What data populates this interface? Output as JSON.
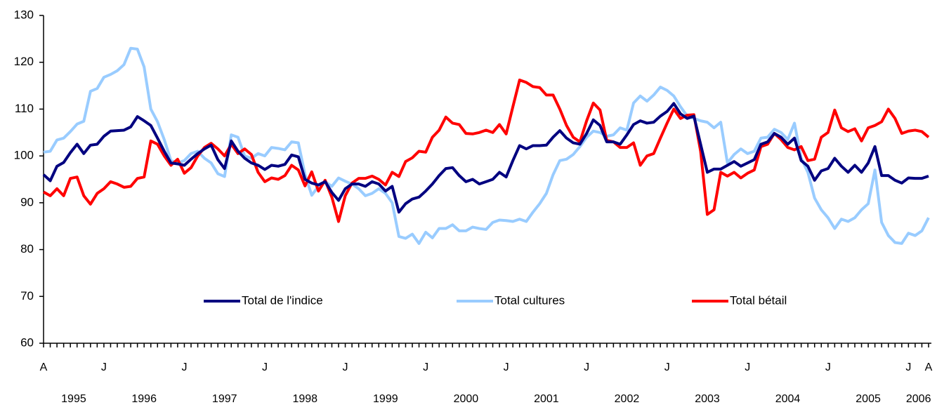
{
  "chart_data": {
    "type": "line",
    "categories": [
      "A",
      null,
      null,
      null,
      null,
      null,
      null,
      null,
      null,
      "J",
      null,
      null,
      null,
      null,
      null,
      null,
      null,
      null,
      null,
      null,
      null,
      "J",
      null,
      null,
      null,
      null,
      null,
      null,
      null,
      null,
      null,
      null,
      null,
      "J",
      null,
      null,
      null,
      null,
      null,
      null,
      null,
      null,
      null,
      null,
      null,
      "J",
      null,
      null,
      null,
      null,
      null,
      null,
      null,
      null,
      null,
      null,
      null,
      "J",
      null,
      null,
      null,
      null,
      null,
      null,
      null,
      null,
      null,
      null,
      null,
      "J",
      null,
      null,
      null,
      null,
      null,
      null,
      null,
      null,
      null,
      null,
      null,
      "J",
      null,
      null,
      null,
      null,
      null,
      null,
      null,
      null,
      null,
      null,
      null,
      "J",
      null,
      null,
      null,
      null,
      null,
      null,
      null,
      null,
      null,
      null,
      null,
      "J",
      null,
      null,
      null,
      null,
      null,
      null,
      null,
      null,
      null,
      null,
      null,
      "J",
      null,
      null,
      null,
      null,
      null,
      null,
      null,
      null,
      null,
      null,
      null,
      "J",
      null,
      null,
      "A"
    ],
    "years": [
      "1995",
      "1996",
      "1997",
      "1998",
      "1999",
      "2000",
      "2001",
      "2002",
      "2003",
      "2004",
      "2005",
      "2006"
    ],
    "series": [
      {
        "name": "Total de l'indice",
        "color": "#000080",
        "values": [
          96,
          94.7,
          97.8,
          98.6,
          100.7,
          102.5,
          100.5,
          102.3,
          102.5,
          104.2,
          105.3,
          105.4,
          105.5,
          106.2,
          108.4,
          107.5,
          106.5,
          103.8,
          101,
          98.5,
          98.3,
          98,
          99.3,
          100.5,
          101.5,
          102.3,
          99.2,
          97.3,
          103.2,
          101,
          99.5,
          98.5,
          98,
          97.1,
          98,
          97.8,
          98.2,
          100.2,
          99.8,
          95,
          94.2,
          93.8,
          94.5,
          92.2,
          90.5,
          93,
          94,
          94,
          93.5,
          94.5,
          94,
          92.5,
          93.5,
          88,
          89.8,
          90.8,
          91.2,
          92.5,
          94,
          95.8,
          97.3,
          97.5,
          95.8,
          94.5,
          95,
          94,
          94.5,
          95,
          96.5,
          95.5,
          99,
          102.2,
          101.5,
          102.2,
          102.2,
          102.3,
          104,
          105.4,
          103.8,
          102.8,
          102.5,
          104.8,
          107.7,
          106.5,
          103,
          103,
          102.5,
          104.5,
          106.7,
          107.5,
          107,
          107.2,
          108.5,
          109.5,
          111.2,
          109,
          108,
          108.5,
          102.5,
          96.5,
          97.2,
          97.2,
          98,
          98.8,
          97.8,
          98.5,
          99.2,
          102.5,
          103,
          104.8,
          104,
          102.5,
          103.8,
          99,
          97.8,
          94.8,
          96.8,
          97.3,
          99.5,
          97.8,
          96.5,
          98,
          96.5,
          98.5,
          102,
          95.8,
          95.8,
          94.8,
          94.2,
          95.3,
          95.2,
          95.2,
          95.7
        ]
      },
      {
        "name": "Total cultures",
        "color": "#99ccff",
        "values": [
          100.8,
          101,
          103.4,
          103.8,
          105.2,
          106.8,
          107.4,
          113.8,
          114.4,
          116.8,
          117.4,
          118.2,
          119.5,
          123,
          122.8,
          119,
          110,
          107.3,
          103.5,
          99,
          98.5,
          99,
          100.5,
          101,
          99.5,
          98.5,
          96.2,
          95.6,
          104.5,
          104,
          100,
          99.5,
          100.5,
          100,
          101.8,
          101.6,
          101.3,
          103,
          102.8,
          96,
          91.6,
          93.5,
          94.5,
          93.5,
          95.3,
          94.6,
          94,
          93,
          91.5,
          92,
          93,
          92,
          90,
          82.8,
          82.4,
          83.3,
          81.3,
          83.7,
          82.5,
          84.5,
          84.5,
          85.3,
          84,
          84,
          84.8,
          84.5,
          84.3,
          85.8,
          86.3,
          86.2,
          86,
          86.5,
          86,
          88,
          89.8,
          92,
          96,
          99,
          99.3,
          100.3,
          102,
          104,
          105.3,
          105,
          104.2,
          104.5,
          106,
          105.5,
          111.3,
          112.8,
          111.7,
          113,
          114.7,
          114,
          112.8,
          110.5,
          108.5,
          108,
          107.5,
          107.2,
          106,
          107.2,
          98.5,
          100.3,
          101.5,
          100.5,
          101,
          103.8,
          104,
          105.7,
          105,
          103.5,
          107,
          99.5,
          96.5,
          91,
          88.5,
          86.8,
          84.5,
          86.5,
          86,
          86.8,
          88.5,
          89.8,
          97,
          85.8,
          83,
          81.5,
          81.3,
          83.5,
          83,
          84,
          86.8
        ]
      },
      {
        "name": "Total bétail",
        "color": "#ff0000",
        "values": [
          92.3,
          91.5,
          93,
          91.5,
          95.2,
          95.5,
          91.5,
          89.7,
          92,
          93,
          94.5,
          94,
          93.3,
          93.5,
          95.2,
          95.5,
          103.2,
          102.5,
          100,
          98,
          99.3,
          96.3,
          97.5,
          100,
          101.8,
          102.7,
          101.5,
          100,
          102.5,
          100.5,
          101.5,
          100.3,
          96.5,
          94.5,
          95.3,
          95,
          95.8,
          98,
          97,
          93.6,
          96.6,
          92.5,
          94.8,
          91.2,
          86,
          91.5,
          94.2,
          95.2,
          95.2,
          95.7,
          95,
          93.8,
          96.5,
          95.6,
          98.8,
          99.6,
          101,
          100.8,
          104,
          105.5,
          108.3,
          107,
          106.7,
          104.8,
          104.7,
          105,
          105.5,
          105,
          106.7,
          104.7,
          110.5,
          116.2,
          115.7,
          114.8,
          114.6,
          113,
          113,
          110,
          106.5,
          104,
          103,
          107.5,
          111.3,
          109.8,
          103.3,
          103,
          101.8,
          101.8,
          102.8,
          98,
          100,
          100.5,
          103.8,
          107,
          110,
          108,
          108.7,
          108.8,
          101,
          87.5,
          88.5,
          96.5,
          95.7,
          96.5,
          95.3,
          96.3,
          97,
          102,
          102.5,
          104.8,
          103.5,
          101.8,
          101.3,
          102,
          99,
          99.3,
          104,
          105,
          109.8,
          106,
          105.2,
          105.8,
          103.2,
          106,
          106.5,
          107.3,
          110,
          108,
          104.8,
          105.3,
          105.5,
          105.2,
          104
        ]
      }
    ],
    "ylim": [
      60,
      130
    ],
    "yticks": [
      60,
      70,
      80,
      90,
      100,
      110,
      120,
      130
    ],
    "grid": false,
    "legend": "bottom"
  }
}
